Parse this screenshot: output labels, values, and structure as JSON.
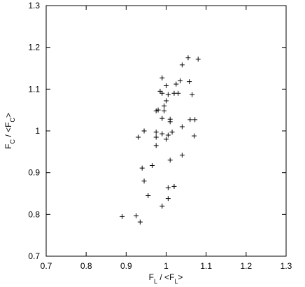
{
  "chart_data": {
    "type": "scatter",
    "xlabel": [
      "F",
      "L",
      " / <F",
      "L",
      ">"
    ],
    "ylabel": [
      "F",
      "C",
      " / <F",
      "C",
      ">"
    ],
    "color": "#000000",
    "xlim": [
      0.7,
      1.3
    ],
    "xticks": [
      0.7,
      0.8,
      0.9,
      1,
      1.1,
      1.2,
      1.3
    ],
    "ylim": [
      0.7,
      1.3
    ],
    "yticks": [
      0.7,
      0.8,
      0.9,
      1,
      1.1,
      1.2,
      1.3
    ],
    "x": [
      1.055,
      1.08,
      1.04,
      0.99,
      1.035,
      1.058,
      1.025,
      1.0,
      0.985,
      0.99,
      1.02,
      1.03,
      1.065,
      1.005,
      1.0,
      0.995,
      0.98,
      0.995,
      0.975,
      1.01,
      1.01,
      0.99,
      1.06,
      1.072,
      1.04,
      0.945,
      0.975,
      0.99,
      1.015,
      1.005,
      0.93,
      0.975,
      1.07,
      1.0,
      0.975,
      1.04,
      1.01,
      0.965,
      0.94,
      0.945,
      1.02,
      1.005,
      0.955,
      1.005,
      0.99,
      0.89,
      0.925,
      0.935
    ],
    "values": [
      1.175,
      1.172,
      1.158,
      1.127,
      1.12,
      1.118,
      1.112,
      1.108,
      1.095,
      1.09,
      1.09,
      1.09,
      1.087,
      1.087,
      1.072,
      1.06,
      1.05,
      1.048,
      1.048,
      1.028,
      1.022,
      1.03,
      1.027,
      1.027,
      1.01,
      1.0,
      0.997,
      0.993,
      0.997,
      0.99,
      0.985,
      0.985,
      0.988,
      0.98,
      0.965,
      0.942,
      0.93,
      0.917,
      0.911,
      0.88,
      0.867,
      0.864,
      0.845,
      0.838,
      0.82,
      0.795,
      0.797,
      0.782
    ]
  }
}
